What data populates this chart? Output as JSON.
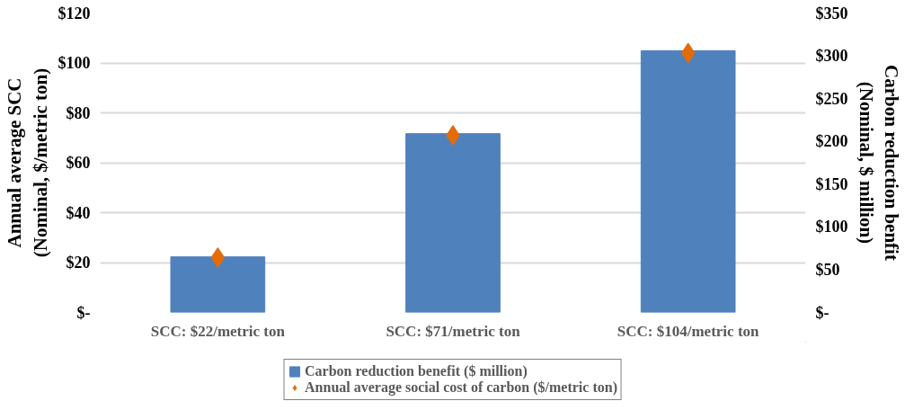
{
  "chart_data": {
    "type": "bar",
    "categories": [
      "SCC: $22/metric ton",
      "SCC: $71/metric ton",
      "SCC: $104/metric ton"
    ],
    "ylabel": "Annual average SCC\n(Nominal, $/metric ton)",
    "y2label": "Carbon reduction benfit\n(Nominal, $ million)",
    "ylim": [
      0,
      120
    ],
    "yticks": [
      {
        "value": 0,
        "label": "$-"
      },
      {
        "value": 20,
        "label": "$20"
      },
      {
        "value": 40,
        "label": "$40"
      },
      {
        "value": 60,
        "label": "$60"
      },
      {
        "value": 80,
        "label": "$80"
      },
      {
        "value": 100,
        "label": "$100"
      },
      {
        "value": 120,
        "label": "$120"
      }
    ],
    "y2lim": [
      0,
      350
    ],
    "y2ticks": [
      {
        "value": 0,
        "label": "$-"
      },
      {
        "value": 50,
        "label": "$50"
      },
      {
        "value": 100,
        "label": "$100"
      },
      {
        "value": 150,
        "label": "$150"
      },
      {
        "value": 200,
        "label": "$200"
      },
      {
        "value": 250,
        "label": "$250"
      },
      {
        "value": 300,
        "label": "$300"
      },
      {
        "value": 350,
        "label": "$350"
      }
    ],
    "series": [
      {
        "name": "Carbon reduction benefit ($ million)",
        "axis": "y2",
        "color": "#4f81bd",
        "values": [
          65,
          209,
          306
        ]
      },
      {
        "name": "Annual average social cost of carbon ($/metric ton)",
        "type": "scatter",
        "marker": "diamond",
        "color": "#e36c09",
        "values": [
          22,
          71,
          104
        ]
      }
    ],
    "grid": "y",
    "legend": "bottom"
  }
}
